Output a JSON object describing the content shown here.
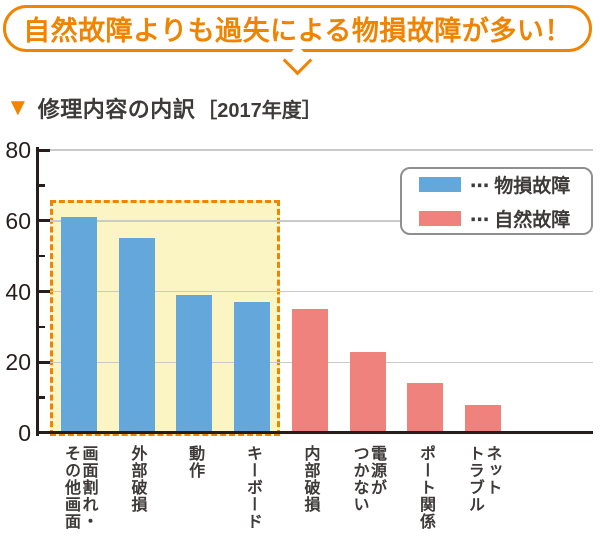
{
  "bubble": {
    "text": "自然故障よりも過失による物損故障が多い！"
  },
  "title": {
    "marker": "▼",
    "main": "修理内容の内訳",
    "sub": "［2017年度］"
  },
  "legend": {
    "items": [
      {
        "label": "⋯ 物損故障",
        "color": "#63A7DB"
      },
      {
        "label": "⋯ 自然故障",
        "color": "#EF827D"
      }
    ]
  },
  "chart_data": {
    "type": "bar",
    "title": "修理内容の内訳［2017年度］",
    "categories": [
      "画面割れ・その他画面",
      "外部破損",
      "動作",
      "キーボード",
      "内部破損",
      "電源がつかない",
      "ポート関係",
      "ネットトラブル"
    ],
    "category_lines": [
      [
        "画面割れ・",
        "その他画面"
      ],
      [
        "外部破損"
      ],
      [
        "動作"
      ],
      [
        "キーボード"
      ],
      [
        "内部破損"
      ],
      [
        "電源が",
        "つかない"
      ],
      [
        "ポート関係"
      ],
      [
        "ネット",
        "トラブル"
      ]
    ],
    "series": [
      {
        "name": "物損故障",
        "color": "#63A7DB",
        "values": [
          61,
          55,
          39,
          37,
          null,
          null,
          null,
          null
        ]
      },
      {
        "name": "自然故障",
        "color": "#EF827D",
        "values": [
          null,
          null,
          null,
          null,
          35,
          23,
          14,
          8
        ]
      }
    ],
    "ylim": [
      0,
      80
    ],
    "yticks": [
      0,
      20,
      40,
      60,
      80
    ],
    "minor_yticks": [
      10,
      30,
      50,
      70
    ],
    "grid": true,
    "legend_position": "top-right",
    "xlabel": "",
    "ylabel": "",
    "highlight": {
      "covers": "物損故障の4項目（画面割れ・その他画面〜キーボード）",
      "fill": "#FBF5C3",
      "border_color": "#F08300",
      "border_style": "dashed",
      "top_value": 66
    }
  },
  "colors": {
    "accent_orange": "#F08300",
    "ink": "#3E3A39",
    "axis": "#251E1C",
    "grid": "#C9CACA",
    "blue": "#63A7DB",
    "red": "#EF827D",
    "highlight_fill": "#FBF5C3",
    "legend_border": "#8E8F8F",
    "background": "#FFFFFF"
  }
}
